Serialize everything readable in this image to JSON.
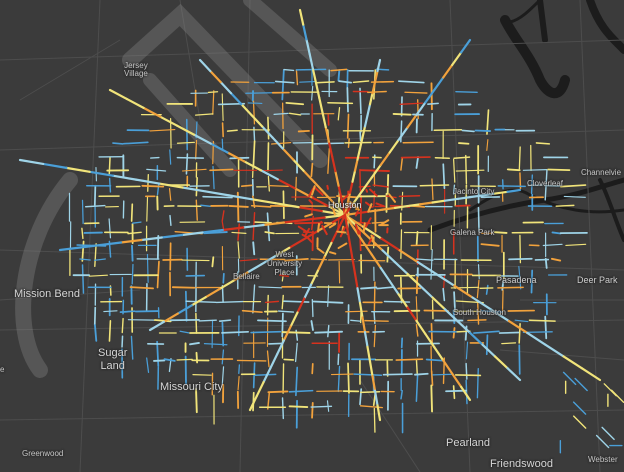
{
  "map": {
    "labels": {
      "jersey_village": "Jersey\nVillage",
      "mission_bend": "Mission Bend",
      "sugar_land": "Sugar\nLand",
      "missouri_city": "Missouri City",
      "pearland": "Pearland",
      "friendswood": "Friendswood",
      "pasadena": "Pasadena",
      "deer_park": "Deer Park",
      "south_houston": "South Houston",
      "galena_park": "Galena Park",
      "jacinto_city": "Jacinto City",
      "cloverleaf": "Cloverleaf",
      "channelview": "Channelvie",
      "houston": "Houston",
      "west_university_place": "West\nUniversity\nPlace",
      "bellaire": "Bellaire",
      "webster": "Webster",
      "greenwood": "Greenwood",
      "edge_e": "e"
    },
    "legend_colors": {
      "low": "#4a9fd8",
      "low_mid": "#9fd4e8",
      "mid": "#f1e47a",
      "high_mid": "#f2a23c",
      "high": "#d6321e"
    },
    "background": {
      "land": "#3b3b3b",
      "water": "#1f1f1f",
      "roads": "#4a4a4a",
      "watermark": "#9a9a9a"
    }
  }
}
